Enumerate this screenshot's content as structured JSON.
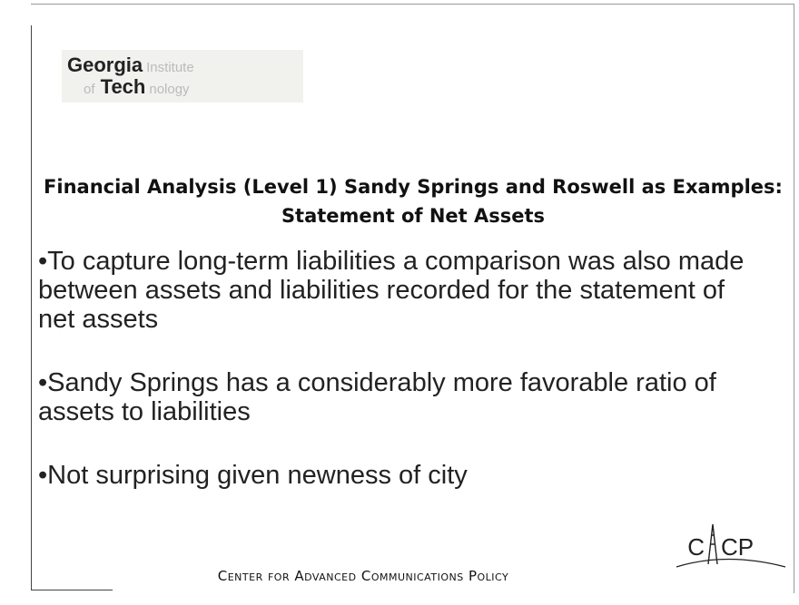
{
  "logo": {
    "line1": [
      "Georgia",
      "Institute"
    ],
    "line2": [
      "of",
      "Tech",
      "nology"
    ]
  },
  "title": "Financial Analysis (Level 1) Sandy Springs and Roswell as Examples: Statement of Net Assets",
  "bullets": [
    "•To capture long-term liabilities a comparison was also made between assets and liabilities recorded for the statement of net assets",
    "•Sandy Springs has a considerably more favorable ratio of assets to liabilities",
    "•Not surprising given newness of city"
  ],
  "footer": "Center for Advanced Communications Policy",
  "badge": {
    "left": "C",
    "right": "CP"
  }
}
